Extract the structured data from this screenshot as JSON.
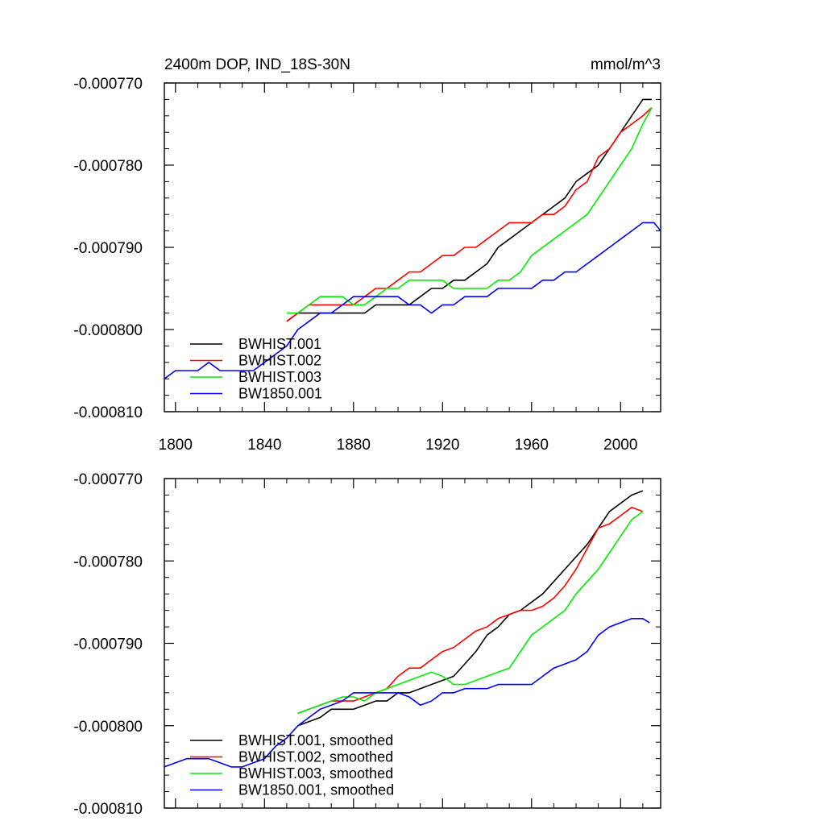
{
  "chart_data": [
    {
      "type": "line",
      "title": "2400m DOP, IND_18S-30N",
      "units": "mmol/m^3",
      "xlabel": "",
      "ylabel": "",
      "xlim": [
        1795,
        2018
      ],
      "ylim": [
        -0.00081,
        -0.00077
      ],
      "xticks": [
        1800,
        1840,
        1880,
        1920,
        1960,
        2000
      ],
      "yticks": [
        -0.00077,
        -0.00078,
        -0.00079,
        -0.0008,
        -0.00081
      ],
      "yticklabels": [
        "-0.000770",
        "-0.000780",
        "-0.000790",
        "-0.000800",
        "-0.000810"
      ],
      "grid": false,
      "legend_position": "bottom-left",
      "series": [
        {
          "name": "BWHIST.001",
          "color": "#000000",
          "x": [
            1850,
            1855,
            1860,
            1865,
            1870,
            1875,
            1880,
            1885,
            1890,
            1895,
            1900,
            1905,
            1910,
            1915,
            1920,
            1925,
            1930,
            1935,
            1940,
            1945,
            1950,
            1955,
            1960,
            1965,
            1970,
            1975,
            1980,
            1985,
            1990,
            1995,
            2000,
            2005,
            2010,
            2014
          ],
          "y": [
            -0.000799,
            -0.000798,
            -0.000798,
            -0.000798,
            -0.000798,
            -0.000798,
            -0.000798,
            -0.000798,
            -0.000797,
            -0.000797,
            -0.000797,
            -0.000797,
            -0.000796,
            -0.000795,
            -0.000795,
            -0.000794,
            -0.000794,
            -0.000793,
            -0.000792,
            -0.00079,
            -0.000789,
            -0.000788,
            -0.000787,
            -0.000786,
            -0.000785,
            -0.000784,
            -0.000782,
            -0.000781,
            -0.00078,
            -0.000778,
            -0.000776,
            -0.000774,
            -0.000772,
            -0.000772
          ]
        },
        {
          "name": "BWHIST.002",
          "color": "#ff0000",
          "x": [
            1850,
            1855,
            1860,
            1865,
            1870,
            1875,
            1880,
            1885,
            1890,
            1895,
            1900,
            1905,
            1910,
            1915,
            1920,
            1925,
            1930,
            1935,
            1940,
            1945,
            1950,
            1955,
            1960,
            1965,
            1970,
            1975,
            1980,
            1985,
            1990,
            1995,
            2000,
            2005,
            2010,
            2014
          ],
          "y": [
            -0.000799,
            -0.000798,
            -0.000797,
            -0.000797,
            -0.000797,
            -0.000797,
            -0.000797,
            -0.000796,
            -0.000795,
            -0.000795,
            -0.000794,
            -0.000793,
            -0.000793,
            -0.000792,
            -0.000791,
            -0.000791,
            -0.00079,
            -0.00079,
            -0.000789,
            -0.000788,
            -0.000787,
            -0.000787,
            -0.000787,
            -0.000786,
            -0.000786,
            -0.000785,
            -0.000783,
            -0.000782,
            -0.000779,
            -0.000778,
            -0.000776,
            -0.000775,
            -0.000774,
            -0.000773
          ]
        },
        {
          "name": "BWHIST.003",
          "color": "#00ee00",
          "x": [
            1850,
            1855,
            1860,
            1865,
            1870,
            1875,
            1880,
            1885,
            1890,
            1895,
            1900,
            1905,
            1910,
            1915,
            1920,
            1925,
            1930,
            1935,
            1940,
            1945,
            1950,
            1955,
            1960,
            1965,
            1970,
            1975,
            1980,
            1985,
            1990,
            1995,
            2000,
            2005,
            2010,
            2014
          ],
          "y": [
            -0.000798,
            -0.000798,
            -0.000797,
            -0.000796,
            -0.000796,
            -0.000796,
            -0.000797,
            -0.000797,
            -0.000796,
            -0.000795,
            -0.000795,
            -0.000794,
            -0.000794,
            -0.000794,
            -0.000794,
            -0.000795,
            -0.000795,
            -0.000795,
            -0.000795,
            -0.000794,
            -0.000794,
            -0.000793,
            -0.000791,
            -0.00079,
            -0.000789,
            -0.000788,
            -0.000787,
            -0.000786,
            -0.000784,
            -0.000782,
            -0.00078,
            -0.000778,
            -0.000775,
            -0.000773
          ]
        },
        {
          "name": "BW1850.001",
          "color": "#0000ff",
          "x": [
            1795,
            1800,
            1805,
            1810,
            1815,
            1820,
            1825,
            1830,
            1835,
            1840,
            1845,
            1850,
            1855,
            1860,
            1865,
            1870,
            1875,
            1880,
            1885,
            1890,
            1895,
            1900,
            1905,
            1910,
            1915,
            1920,
            1925,
            1930,
            1935,
            1940,
            1945,
            1950,
            1955,
            1960,
            1965,
            1970,
            1975,
            1980,
            1985,
            1990,
            1995,
            2000,
            2005,
            2010,
            2015,
            2018
          ],
          "y": [
            -0.000806,
            -0.000805,
            -0.000805,
            -0.000805,
            -0.000804,
            -0.000805,
            -0.000805,
            -0.000805,
            -0.000805,
            -0.000804,
            -0.000803,
            -0.000802,
            -0.0008,
            -0.000799,
            -0.000798,
            -0.000798,
            -0.000797,
            -0.000796,
            -0.000796,
            -0.000796,
            -0.000796,
            -0.000796,
            -0.000797,
            -0.000797,
            -0.000798,
            -0.000797,
            -0.000797,
            -0.000796,
            -0.000796,
            -0.000796,
            -0.000795,
            -0.000795,
            -0.000795,
            -0.000795,
            -0.000794,
            -0.000794,
            -0.000793,
            -0.000793,
            -0.000792,
            -0.000791,
            -0.00079,
            -0.000789,
            -0.000788,
            -0.000787,
            -0.000787,
            -0.000788
          ]
        }
      ]
    },
    {
      "type": "line",
      "title": "",
      "xlabel": "",
      "ylabel": "",
      "xlim": [
        1795,
        2018
      ],
      "ylim": [
        -0.00081,
        -0.00077
      ],
      "xticks": [
        1800,
        1840,
        1880,
        1920,
        1960,
        2000
      ],
      "yticks": [
        -0.00077,
        -0.00078,
        -0.00079,
        -0.0008,
        -0.00081
      ],
      "yticklabels": [
        "-0.000770",
        "-0.000780",
        "-0.000790",
        "-0.000800",
        "-0.000810"
      ],
      "grid": false,
      "legend_position": "bottom-left",
      "series": [
        {
          "name": "BWHIST.001, smoothed",
          "color": "#000000",
          "x": [
            1855,
            1860,
            1865,
            1870,
            1875,
            1880,
            1885,
            1890,
            1895,
            1900,
            1905,
            1910,
            1915,
            1920,
            1925,
            1930,
            1935,
            1940,
            1945,
            1950,
            1955,
            1960,
            1965,
            1970,
            1975,
            1980,
            1985,
            1990,
            1995,
            2000,
            2005,
            2010
          ],
          "y": [
            -0.0008,
            -0.0007995,
            -0.000799,
            -0.000798,
            -0.000798,
            -0.000798,
            -0.0007975,
            -0.000797,
            -0.000797,
            -0.000796,
            -0.000796,
            -0.0007955,
            -0.000795,
            -0.0007945,
            -0.000794,
            -0.0007925,
            -0.000791,
            -0.000789,
            -0.000788,
            -0.0007865,
            -0.000786,
            -0.000785,
            -0.000784,
            -0.0007825,
            -0.000781,
            -0.0007795,
            -0.000778,
            -0.000776,
            -0.000774,
            -0.000773,
            -0.000772,
            -0.0007715
          ]
        },
        {
          "name": "BWHIST.002, smoothed",
          "color": "#ff0000",
          "x": [
            1855,
            1860,
            1865,
            1870,
            1875,
            1880,
            1885,
            1890,
            1895,
            1900,
            1905,
            1910,
            1915,
            1920,
            1925,
            1930,
            1935,
            1940,
            1945,
            1950,
            1955,
            1960,
            1965,
            1970,
            1975,
            1980,
            1985,
            1990,
            1995,
            2000,
            2005,
            2010
          ],
          "y": [
            -0.0007985,
            -0.000798,
            -0.0007975,
            -0.000797,
            -0.000797,
            -0.000797,
            -0.0007965,
            -0.000796,
            -0.0007955,
            -0.000794,
            -0.000793,
            -0.000793,
            -0.000792,
            -0.000791,
            -0.0007905,
            -0.0007895,
            -0.0007885,
            -0.000788,
            -0.000787,
            -0.0007865,
            -0.000786,
            -0.000786,
            -0.0007855,
            -0.0007845,
            -0.000783,
            -0.000781,
            -0.0007785,
            -0.000776,
            -0.0007755,
            -0.0007745,
            -0.0007735,
            -0.000774
          ]
        },
        {
          "name": "BWHIST.003, smoothed",
          "color": "#00ee00",
          "x": [
            1855,
            1860,
            1865,
            1870,
            1875,
            1880,
            1885,
            1890,
            1895,
            1900,
            1905,
            1910,
            1915,
            1920,
            1925,
            1930,
            1935,
            1940,
            1945,
            1950,
            1955,
            1960,
            1965,
            1970,
            1975,
            1980,
            1985,
            1990,
            1995,
            2000,
            2005,
            2010
          ],
          "y": [
            -0.0007985,
            -0.000798,
            -0.0007975,
            -0.000797,
            -0.0007965,
            -0.0007965,
            -0.000797,
            -0.000796,
            -0.0007955,
            -0.000795,
            -0.0007945,
            -0.000794,
            -0.0007935,
            -0.000794,
            -0.000795,
            -0.000795,
            -0.0007945,
            -0.000794,
            -0.0007935,
            -0.000793,
            -0.000791,
            -0.000789,
            -0.000788,
            -0.000787,
            -0.000786,
            -0.000784,
            -0.0007825,
            -0.000781,
            -0.000779,
            -0.000777,
            -0.000775,
            -0.000774
          ]
        },
        {
          "name": "BW1850.001, smoothed",
          "color": "#0000ff",
          "x": [
            1795,
            1800,
            1805,
            1810,
            1815,
            1820,
            1825,
            1830,
            1835,
            1840,
            1845,
            1850,
            1855,
            1860,
            1865,
            1870,
            1875,
            1880,
            1885,
            1890,
            1895,
            1900,
            1905,
            1910,
            1915,
            1920,
            1925,
            1930,
            1935,
            1940,
            1945,
            1950,
            1955,
            1960,
            1965,
            1970,
            1975,
            1980,
            1985,
            1990,
            1995,
            2000,
            2005,
            2010,
            2013
          ],
          "y": [
            -0.000805,
            -0.0008045,
            -0.000804,
            -0.000804,
            -0.000804,
            -0.0008045,
            -0.000805,
            -0.000805,
            -0.0008045,
            -0.000804,
            -0.0008025,
            -0.0008015,
            -0.0008,
            -0.000799,
            -0.000798,
            -0.0007975,
            -0.000797,
            -0.000796,
            -0.000796,
            -0.000796,
            -0.000796,
            -0.000796,
            -0.0007965,
            -0.0007975,
            -0.000797,
            -0.000796,
            -0.000796,
            -0.0007955,
            -0.0007955,
            -0.0007955,
            -0.000795,
            -0.000795,
            -0.000795,
            -0.000795,
            -0.000794,
            -0.000793,
            -0.0007925,
            -0.000792,
            -0.000791,
            -0.000789,
            -0.000788,
            -0.0007875,
            -0.000787,
            -0.000787,
            -0.0007875
          ]
        }
      ]
    }
  ]
}
